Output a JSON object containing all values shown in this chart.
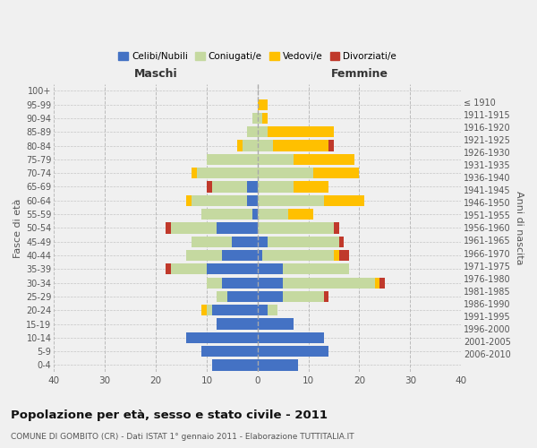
{
  "age_groups": [
    "0-4",
    "5-9",
    "10-14",
    "15-19",
    "20-24",
    "25-29",
    "30-34",
    "35-39",
    "40-44",
    "45-49",
    "50-54",
    "55-59",
    "60-64",
    "65-69",
    "70-74",
    "75-79",
    "80-84",
    "85-89",
    "90-94",
    "95-99",
    "100+"
  ],
  "birth_years": [
    "2006-2010",
    "2001-2005",
    "1996-2000",
    "1991-1995",
    "1986-1990",
    "1981-1985",
    "1976-1980",
    "1971-1975",
    "1966-1970",
    "1961-1965",
    "1956-1960",
    "1951-1955",
    "1946-1950",
    "1941-1945",
    "1936-1940",
    "1931-1935",
    "1926-1930",
    "1921-1925",
    "1916-1920",
    "1911-1915",
    "≤ 1910"
  ],
  "colors": {
    "celibi": "#4472c4",
    "coniugati": "#c5d9a0",
    "vedovi": "#ffc000",
    "divorziati": "#c0392b"
  },
  "maschi": {
    "celibi": [
      9,
      11,
      14,
      8,
      9,
      6,
      7,
      10,
      7,
      5,
      8,
      1,
      2,
      2,
      0,
      0,
      0,
      0,
      0,
      0,
      0
    ],
    "coniugati": [
      0,
      0,
      0,
      0,
      1,
      2,
      3,
      7,
      7,
      8,
      9,
      10,
      11,
      7,
      12,
      10,
      3,
      2,
      1,
      0,
      0
    ],
    "vedovi": [
      0,
      0,
      0,
      0,
      1,
      0,
      0,
      0,
      0,
      0,
      0,
      0,
      1,
      0,
      1,
      0,
      1,
      0,
      0,
      0,
      0
    ],
    "divorziati": [
      0,
      0,
      0,
      0,
      0,
      0,
      0,
      1,
      0,
      0,
      1,
      0,
      0,
      1,
      0,
      0,
      0,
      0,
      0,
      0,
      0
    ]
  },
  "femmine": {
    "celibi": [
      8,
      14,
      13,
      7,
      2,
      5,
      5,
      5,
      1,
      2,
      0,
      0,
      0,
      0,
      0,
      0,
      0,
      0,
      0,
      0,
      0
    ],
    "coniugati": [
      0,
      0,
      0,
      0,
      2,
      8,
      18,
      13,
      14,
      14,
      15,
      6,
      13,
      7,
      11,
      7,
      3,
      2,
      1,
      0,
      0
    ],
    "vedovi": [
      0,
      0,
      0,
      0,
      0,
      0,
      1,
      0,
      1,
      0,
      0,
      5,
      8,
      7,
      9,
      12,
      11,
      13,
      1,
      2,
      0
    ],
    "divorziati": [
      0,
      0,
      0,
      0,
      0,
      1,
      1,
      0,
      2,
      1,
      1,
      0,
      0,
      0,
      0,
      0,
      1,
      0,
      0,
      0,
      0
    ]
  },
  "xlim": 40,
  "title": "Popolazione per età, sesso e stato civile - 2011",
  "subtitle": "COMUNE DI GOMBITO (CR) - Dati ISTAT 1° gennaio 2011 - Elaborazione TUTTITALIA.IT",
  "xlabel_left": "Maschi",
  "xlabel_right": "Femmine",
  "ylabel_left": "Fasce di età",
  "ylabel_right": "Anni di nascita",
  "legend_labels": [
    "Celibi/Nubili",
    "Coniugati/e",
    "Vedovi/e",
    "Divorziati/e"
  ],
  "background_color": "#f0f0f0"
}
